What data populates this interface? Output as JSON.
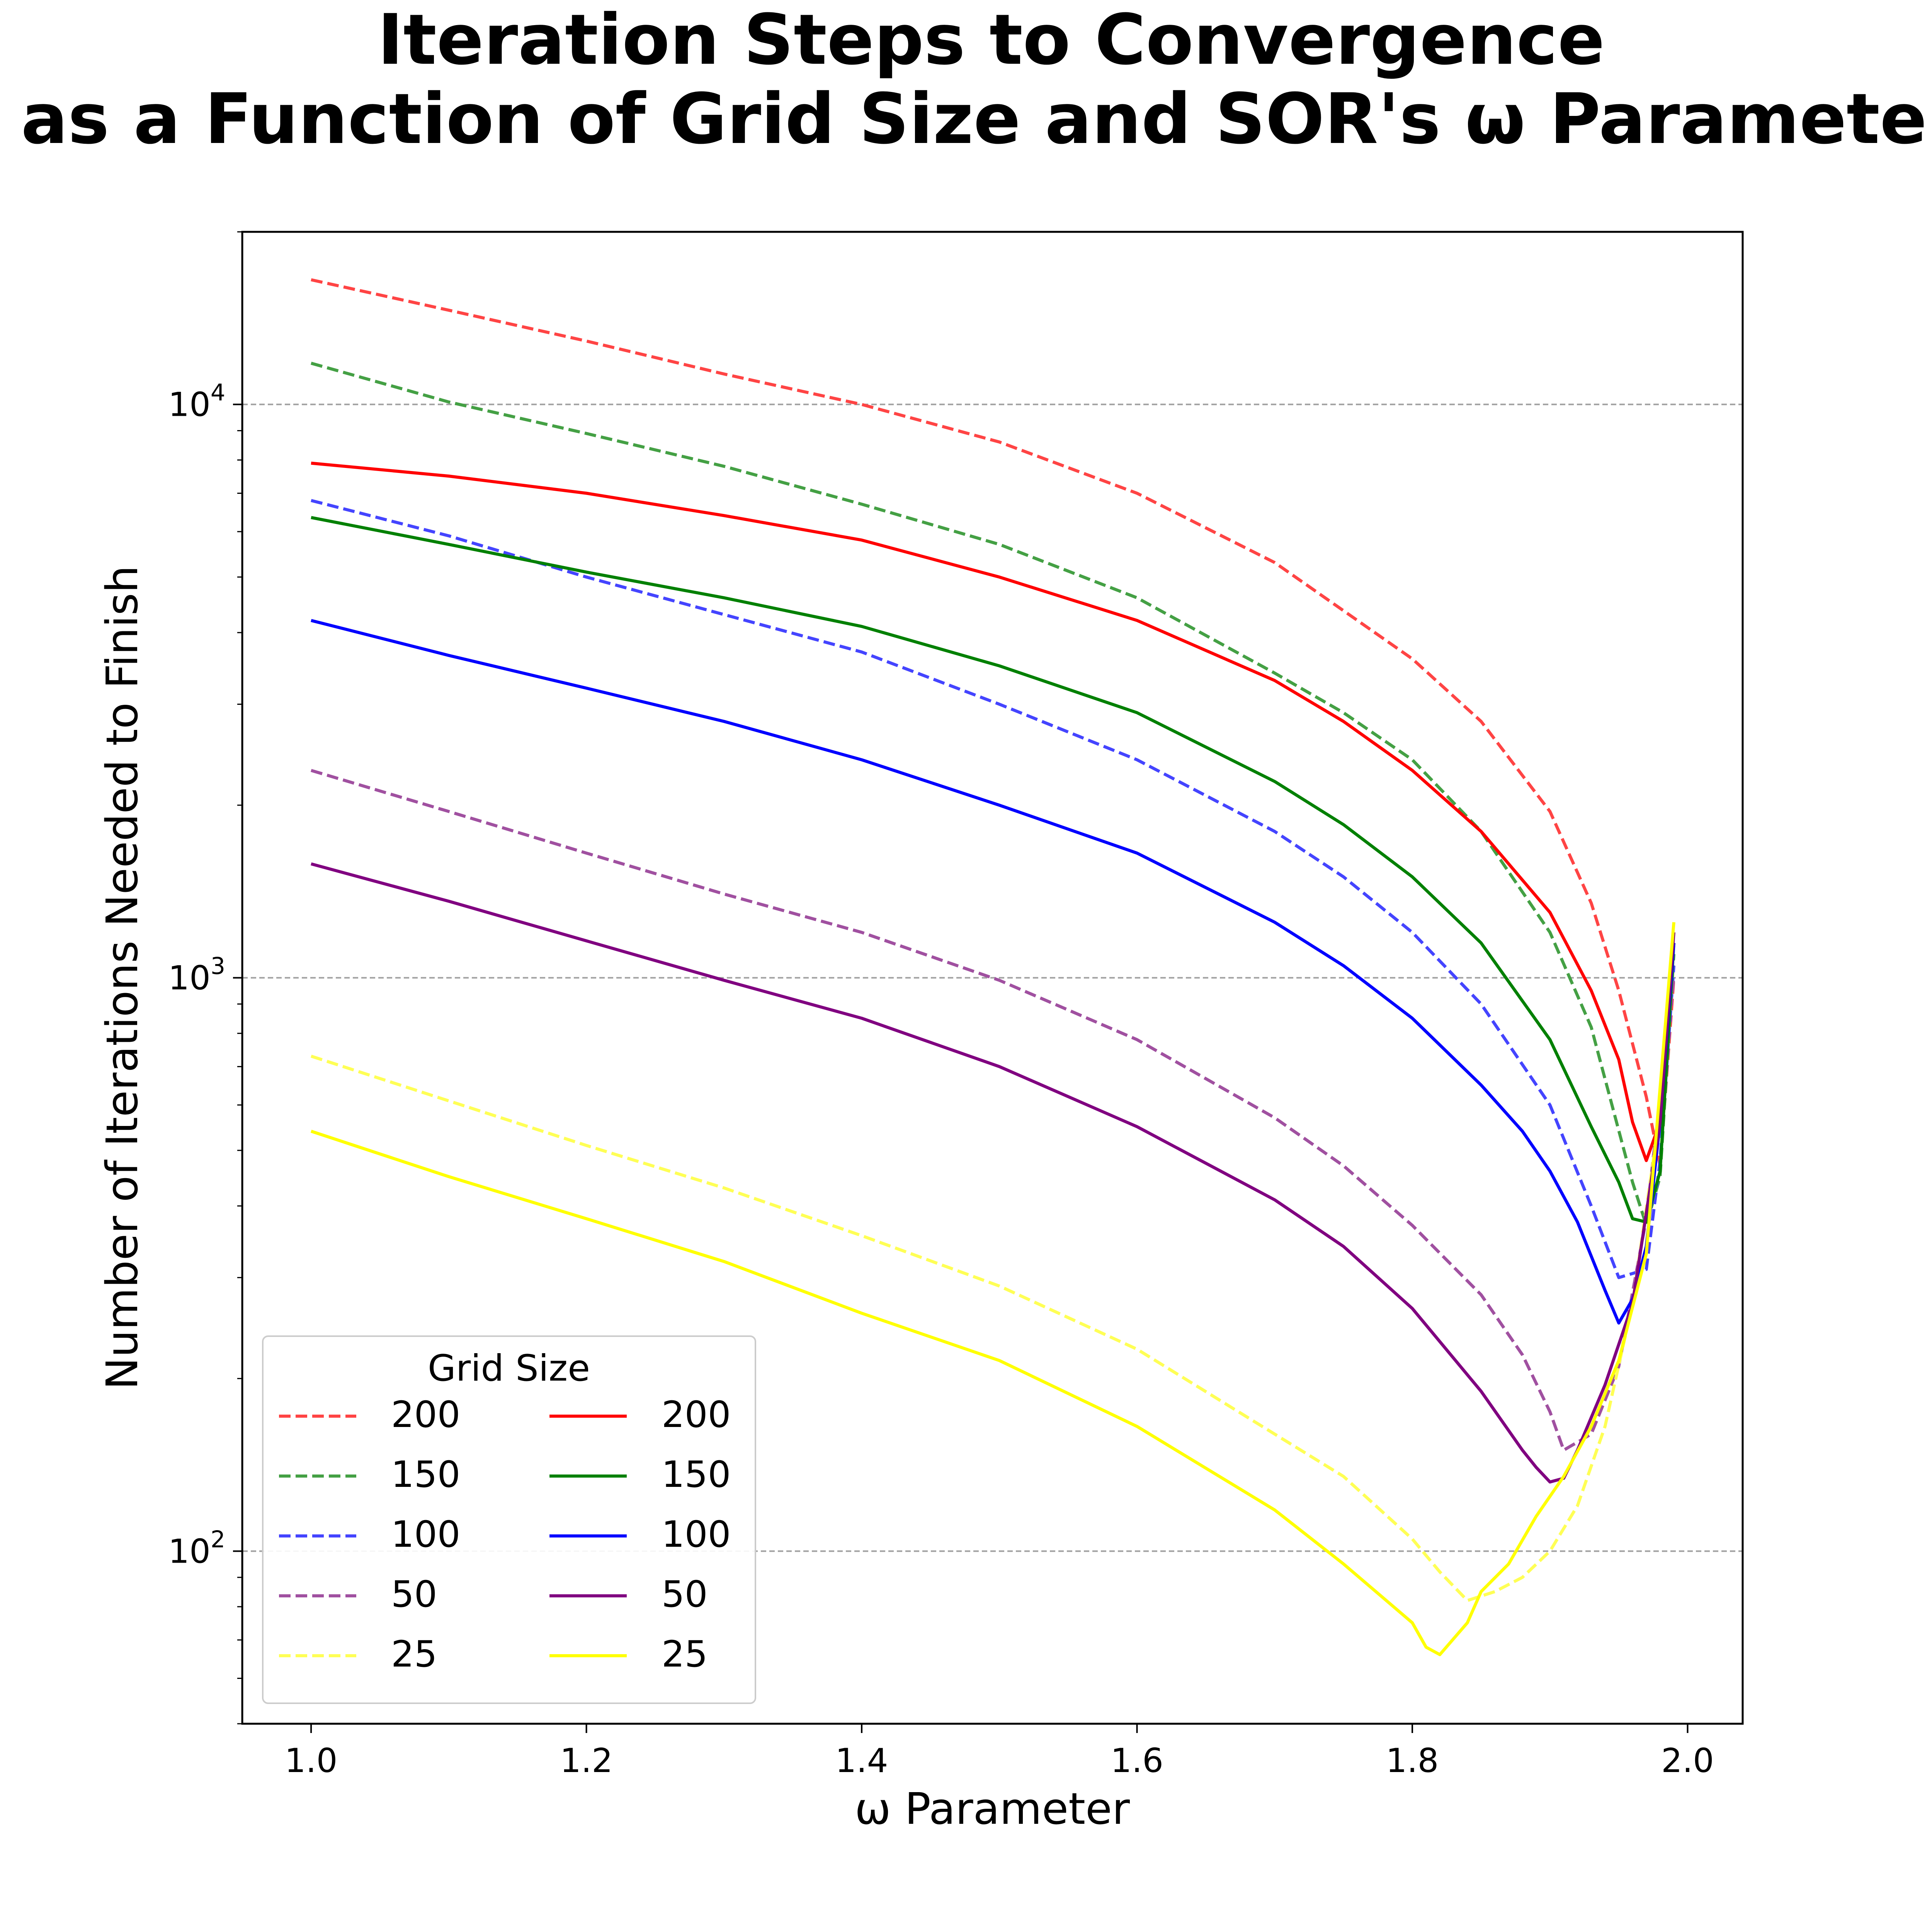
{
  "chart_data": {
    "type": "line",
    "title_lines": [
      "Iteration Steps to Convergence",
      "as a Function of Grid Size and SOR's ω Parameter"
    ],
    "xlabel": "ω Parameter",
    "ylabel": "Number of Iterations Needed to Finish",
    "xlim": [
      0.95,
      2.04
    ],
    "ylim": [
      50,
      20000
    ],
    "yscale": "log",
    "x_ticks": [
      1.0,
      1.2,
      1.4,
      1.6,
      1.8,
      2.0
    ],
    "x_tick_labels": [
      "1.0",
      "1.2",
      "1.4",
      "1.6",
      "1.8",
      "2.0"
    ],
    "y_ticks": [
      {
        "value": 100,
        "base": "10",
        "exp": "2"
      },
      {
        "value": 1000,
        "base": "10",
        "exp": "3"
      },
      {
        "value": 10000,
        "base": "10",
        "exp": "4"
      }
    ],
    "grid": "horizontal-major-dashed",
    "legend": {
      "title": "Grid Size",
      "placement": "lower-left",
      "columns": 2
    },
    "series": [
      {
        "name": "200",
        "style": "dashed",
        "color": "#ff4444",
        "x": [
          1.0,
          1.1,
          1.2,
          1.3,
          1.4,
          1.5,
          1.6,
          1.7,
          1.8,
          1.85,
          1.9,
          1.93,
          1.95,
          1.97,
          1.98,
          1.99
        ],
        "y": [
          16500,
          14600,
          12900,
          11300,
          10000,
          8600,
          7000,
          5300,
          3600,
          2800,
          1950,
          1350,
          950,
          620,
          470,
          1000
        ]
      },
      {
        "name": "150",
        "style": "dashed",
        "color": "#44a044",
        "x": [
          1.0,
          1.1,
          1.2,
          1.3,
          1.4,
          1.5,
          1.6,
          1.7,
          1.75,
          1.8,
          1.85,
          1.9,
          1.93,
          1.96,
          1.97,
          1.98,
          1.99
        ],
        "y": [
          11800,
          10100,
          8900,
          7800,
          6700,
          5700,
          4600,
          3400,
          2900,
          2400,
          1800,
          1200,
          820,
          440,
          370,
          450,
          1100
        ]
      },
      {
        "name": "100",
        "style": "dashed",
        "color": "#4444ff",
        "x": [
          1.0,
          1.1,
          1.2,
          1.3,
          1.4,
          1.5,
          1.6,
          1.7,
          1.75,
          1.8,
          1.85,
          1.9,
          1.93,
          1.95,
          1.97,
          1.98,
          1.99
        ],
        "y": [
          6800,
          5900,
          5000,
          4300,
          3700,
          3000,
          2400,
          1800,
          1500,
          1200,
          900,
          600,
          400,
          300,
          310,
          480,
          1050
        ]
      },
      {
        "name": "50",
        "style": "dashed",
        "color": "#a050a0",
        "x": [
          1.0,
          1.1,
          1.2,
          1.3,
          1.4,
          1.5,
          1.6,
          1.7,
          1.75,
          1.8,
          1.85,
          1.88,
          1.9,
          1.91,
          1.93,
          1.95,
          1.97,
          1.99
        ],
        "y": [
          2300,
          1950,
          1650,
          1400,
          1200,
          990,
          780,
          570,
          470,
          370,
          280,
          220,
          175,
          150,
          160,
          210,
          380,
          1000
        ]
      },
      {
        "name": "25",
        "style": "dashed",
        "color": "#ffff55",
        "x": [
          1.0,
          1.1,
          1.2,
          1.3,
          1.4,
          1.5,
          1.6,
          1.7,
          1.75,
          1.8,
          1.82,
          1.84,
          1.86,
          1.88,
          1.9,
          1.92,
          1.94,
          1.96,
          1.98,
          1.99
        ],
        "y": [
          730,
          610,
          510,
          430,
          355,
          290,
          225,
          160,
          135,
          105,
          92,
          82,
          85,
          90,
          100,
          120,
          165,
          270,
          580,
          1200
        ]
      },
      {
        "name": "200",
        "style": "solid",
        "color": "#ff0000",
        "x": [
          1.0,
          1.1,
          1.2,
          1.3,
          1.4,
          1.5,
          1.6,
          1.7,
          1.75,
          1.8,
          1.85,
          1.9,
          1.93,
          1.95,
          1.96,
          1.97,
          1.98,
          1.99
        ],
        "y": [
          7900,
          7500,
          7000,
          6400,
          5800,
          5000,
          4200,
          3300,
          2800,
          2300,
          1800,
          1300,
          950,
          720,
          560,
          480,
          560,
          1150
        ]
      },
      {
        "name": "150",
        "style": "solid",
        "color": "#008000",
        "x": [
          1.0,
          1.1,
          1.2,
          1.3,
          1.4,
          1.5,
          1.6,
          1.7,
          1.75,
          1.8,
          1.85,
          1.9,
          1.93,
          1.95,
          1.96,
          1.97,
          1.98,
          1.99
        ],
        "y": [
          6350,
          5700,
          5100,
          4600,
          4100,
          3500,
          2900,
          2200,
          1850,
          1500,
          1150,
          780,
          550,
          440,
          380,
          375,
          460,
          1150
        ]
      },
      {
        "name": "100",
        "style": "solid",
        "color": "#0000ff",
        "x": [
          1.0,
          1.1,
          1.2,
          1.3,
          1.4,
          1.5,
          1.6,
          1.7,
          1.75,
          1.8,
          1.85,
          1.88,
          1.9,
          1.92,
          1.94,
          1.95,
          1.96,
          1.97,
          1.98,
          1.99
        ],
        "y": [
          4200,
          3650,
          3200,
          2800,
          2400,
          2000,
          1650,
          1250,
          1050,
          850,
          650,
          540,
          460,
          375,
          285,
          250,
          275,
          340,
          560,
          1150
        ]
      },
      {
        "name": "50",
        "style": "solid",
        "color": "#800080",
        "x": [
          1.0,
          1.1,
          1.2,
          1.3,
          1.4,
          1.5,
          1.6,
          1.7,
          1.75,
          1.8,
          1.85,
          1.88,
          1.89,
          1.9,
          1.91,
          1.92,
          1.94,
          1.96,
          1.98,
          1.99
        ],
        "y": [
          1580,
          1360,
          1160,
          990,
          850,
          700,
          550,
          410,
          340,
          265,
          190,
          150,
          140,
          132,
          134,
          150,
          195,
          270,
          560,
          1200
        ]
      },
      {
        "name": "25",
        "style": "solid",
        "color": "#ffff00",
        "x": [
          1.0,
          1.1,
          1.2,
          1.3,
          1.4,
          1.5,
          1.6,
          1.7,
          1.75,
          1.8,
          1.81,
          1.82,
          1.84,
          1.85,
          1.87,
          1.89,
          1.91,
          1.93,
          1.95,
          1.97,
          1.99
        ],
        "y": [
          540,
          450,
          380,
          320,
          260,
          215,
          165,
          118,
          95,
          75,
          68,
          66,
          75,
          85,
          95,
          115,
          135,
          165,
          215,
          330,
          1250
        ]
      }
    ]
  }
}
